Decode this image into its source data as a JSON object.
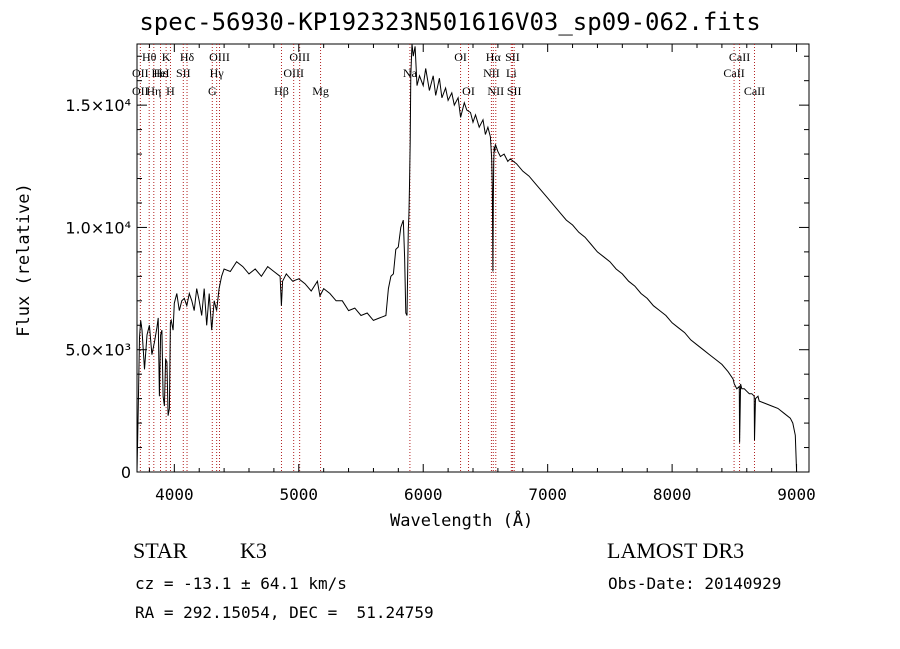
{
  "chart_data": {
    "type": "line",
    "title": "spec-56930-KP192323N501616V03_sp09-062.fits",
    "xlabel": "Wavelength (Å)",
    "ylabel": "Flux (relative)",
    "xlim": [
      3700,
      9100
    ],
    "ylim": [
      0,
      17500
    ],
    "xticks": [
      4000,
      5000,
      6000,
      7000,
      8000,
      9000
    ],
    "xtick_labels": [
      "4000",
      "5000",
      "6000",
      "7000",
      "8000",
      "9000"
    ],
    "yticks": [
      0,
      5000,
      10000,
      15000
    ],
    "ytick_labels": [
      "0",
      "5.0×10³",
      "1.0×10⁴",
      "1.5×10⁴"
    ],
    "series": [
      {
        "name": "flux",
        "x": [
          3700,
          3710,
          3720,
          3730,
          3740,
          3760,
          3780,
          3800,
          3820,
          3840,
          3860,
          3870,
          3880,
          3890,
          3900,
          3910,
          3920,
          3930,
          3940,
          3950,
          3960,
          3968,
          3975,
          3990,
          4000,
          4020,
          4040,
          4060,
          4080,
          4100,
          4120,
          4140,
          4160,
          4180,
          4200,
          4220,
          4240,
          4260,
          4280,
          4300,
          4320,
          4340,
          4360,
          4380,
          4400,
          4450,
          4500,
          4550,
          4600,
          4650,
          4700,
          4750,
          4800,
          4850,
          4860,
          4870,
          4900,
          4950,
          5000,
          5050,
          5100,
          5150,
          5170,
          5180,
          5200,
          5250,
          5300,
          5350,
          5400,
          5450,
          5500,
          5550,
          5600,
          5650,
          5700,
          5720,
          5740,
          5760,
          5780,
          5800,
          5820,
          5840,
          5850,
          5860,
          5870,
          5880,
          5885,
          5890,
          5895,
          5900,
          5910,
          5920,
          5935,
          5950,
          5970,
          6000,
          6020,
          6050,
          6080,
          6100,
          6130,
          6150,
          6180,
          6200,
          6230,
          6250,
          6280,
          6300,
          6330,
          6350,
          6380,
          6400,
          6420,
          6450,
          6480,
          6500,
          6520,
          6540,
          6550,
          6555,
          6560,
          6563,
          6566,
          6570,
          6575,
          6580,
          6600,
          6620,
          6650,
          6680,
          6700,
          6750,
          6800,
          6850,
          6900,
          6950,
          7000,
          7050,
          7100,
          7150,
          7200,
          7250,
          7300,
          7350,
          7400,
          7450,
          7500,
          7550,
          7600,
          7650,
          7700,
          7750,
          7800,
          7850,
          7900,
          7950,
          8000,
          8050,
          8100,
          8150,
          8200,
          8250,
          8300,
          8350,
          8400,
          8450,
          8490,
          8500,
          8520,
          8540,
          8542,
          8550,
          8560,
          8580,
          8600,
          8620,
          8640,
          8660,
          8662,
          8670,
          8690,
          8700,
          8750,
          8800,
          8850,
          8900,
          8950,
          8970,
          8990,
          9000
        ],
        "y": [
          0,
          2500,
          5500,
          6200,
          5800,
          4200,
          5600,
          6000,
          4800,
          5300,
          5900,
          6300,
          3100,
          5600,
          5800,
          3100,
          2700,
          4600,
          4500,
          2300,
          2600,
          6100,
          6200,
          5800,
          6900,
          7300,
          6600,
          7000,
          7100,
          6800,
          7300,
          7000,
          6600,
          7500,
          7000,
          6400,
          7500,
          6000,
          7300,
          5800,
          7000,
          6600,
          7500,
          8000,
          8300,
          8200,
          8600,
          8400,
          8100,
          8300,
          8000,
          8400,
          8200,
          8000,
          6800,
          7800,
          8100,
          7800,
          7900,
          7700,
          7400,
          7800,
          7200,
          7300,
          7500,
          7300,
          7000,
          7000,
          6600,
          6700,
          6400,
          6500,
          6200,
          6300,
          6400,
          7500,
          8000,
          8100,
          9100,
          9200,
          10000,
          10300,
          8800,
          6500,
          6400,
          9900,
          10500,
          11700,
          13500,
          16200,
          17500,
          17000,
          17400,
          15800,
          16200,
          15800,
          16500,
          15600,
          16200,
          15400,
          16100,
          15300,
          15700,
          15200,
          15500,
          15000,
          15300,
          14500,
          15100,
          14800,
          14700,
          14300,
          14600,
          14100,
          14400,
          13800,
          14100,
          13700,
          12800,
          11700,
          8200,
          11000,
          12600,
          13300,
          13100,
          13400,
          13100,
          12900,
          13000,
          12700,
          12800,
          12600,
          12300,
          12100,
          11800,
          11500,
          11200,
          10900,
          10600,
          10300,
          10100,
          9800,
          9600,
          9300,
          9000,
          8800,
          8600,
          8300,
          8100,
          7800,
          7600,
          7300,
          7100,
          6800,
          6600,
          6400,
          6100,
          5900,
          5700,
          5400,
          5200,
          5000,
          4800,
          4600,
          4400,
          4100,
          3800,
          3600,
          3400,
          3500,
          1200,
          3600,
          3400,
          3400,
          3300,
          3200,
          3200,
          3100,
          1300,
          3000,
          3100,
          2900,
          2800,
          2700,
          2600,
          2400,
          2200,
          2000,
          1500,
          0
        ]
      }
    ],
    "line_markers": [
      {
        "label": "Hθ",
        "wavelength": 3798,
        "row": 1
      },
      {
        "label": "OII",
        "wavelength": 3727,
        "row": 2
      },
      {
        "label": "OII",
        "wavelength": 3727,
        "row": 3
      },
      {
        "label": "K",
        "wavelength": 3934,
        "row": 1
      },
      {
        "label": "Hε",
        "wavelength": 3889,
        "row": 2
      },
      {
        "label": "Hη",
        "wavelength": 3835,
        "row": 3
      },
      {
        "label": "HeI",
        "wavelength": 3889,
        "row": 2
      },
      {
        "label": "H",
        "wavelength": 3969,
        "row": 3
      },
      {
        "label": "SII",
        "wavelength": 4072,
        "row": 2
      },
      {
        "label": "Hδ",
        "wavelength": 4102,
        "row": 1
      },
      {
        "label": "OIII",
        "wavelength": 4363,
        "row": 1
      },
      {
        "label": "Hγ",
        "wavelength": 4340,
        "row": 2
      },
      {
        "label": "G",
        "wavelength": 4305,
        "row": 3
      },
      {
        "label": "Hβ",
        "wavelength": 4861,
        "row": 3
      },
      {
        "label": "OIII",
        "wavelength": 5007,
        "row": 1
      },
      {
        "label": "OIII",
        "wavelength": 4959,
        "row": 2
      },
      {
        "label": "Mg",
        "wavelength": 5175,
        "row": 3
      },
      {
        "label": "Na",
        "wavelength": 5893,
        "row": 2
      },
      {
        "label": "OI",
        "wavelength": 6300,
        "row": 1
      },
      {
        "label": "OI",
        "wavelength": 6364,
        "row": 3
      },
      {
        "label": "Hα",
        "wavelength": 6563,
        "row": 1
      },
      {
        "label": "NII",
        "wavelength": 6548,
        "row": 2
      },
      {
        "label": "NII",
        "wavelength": 6583,
        "row": 3
      },
      {
        "label": "SII",
        "wavelength": 6717,
        "row": 1
      },
      {
        "label": "Li",
        "wavelength": 6708,
        "row": 2
      },
      {
        "label": "SII",
        "wavelength": 6731,
        "row": 3
      },
      {
        "label": "CaII",
        "wavelength": 8542,
        "row": 1
      },
      {
        "label": "CaII",
        "wavelength": 8498,
        "row": 2
      },
      {
        "label": "CaII",
        "wavelength": 8662,
        "row": 3
      }
    ]
  },
  "info": {
    "class_label": "STAR",
    "subclass": "K3",
    "survey": "LAMOST DR3",
    "redshift": "cz = -13.1 ± 64.1 km/s",
    "obs_date": "Obs-Date: 20140929",
    "coords": "RA = 292.15054, DEC =  51.24759"
  },
  "colors": {
    "line": "#000000",
    "marker": "#b22222",
    "background": "#ffffff"
  }
}
